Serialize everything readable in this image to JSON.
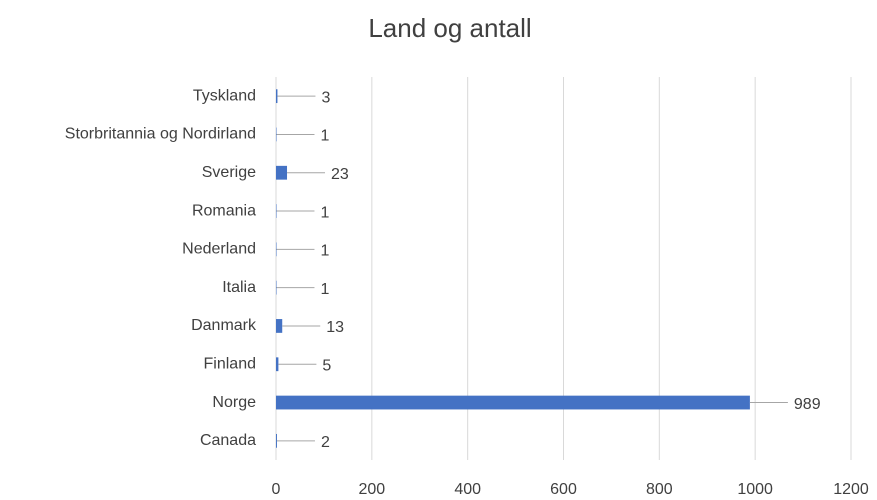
{
  "chart_data": {
    "type": "bar",
    "orientation": "horizontal",
    "title": "Land og antall",
    "categories": [
      "Tyskland",
      "Storbritannia og Nordirland",
      "Sverige",
      "Romania",
      "Nederland",
      "Italia",
      "Danmark",
      "Finland",
      "Norge",
      "Canada"
    ],
    "values": [
      3,
      1,
      23,
      1,
      1,
      1,
      13,
      5,
      989,
      2
    ],
    "color": "#4472c4",
    "xlim": [
      0,
      1200
    ],
    "xticks": [
      0,
      200,
      400,
      600,
      800,
      1000,
      1200
    ],
    "grid": true
  }
}
